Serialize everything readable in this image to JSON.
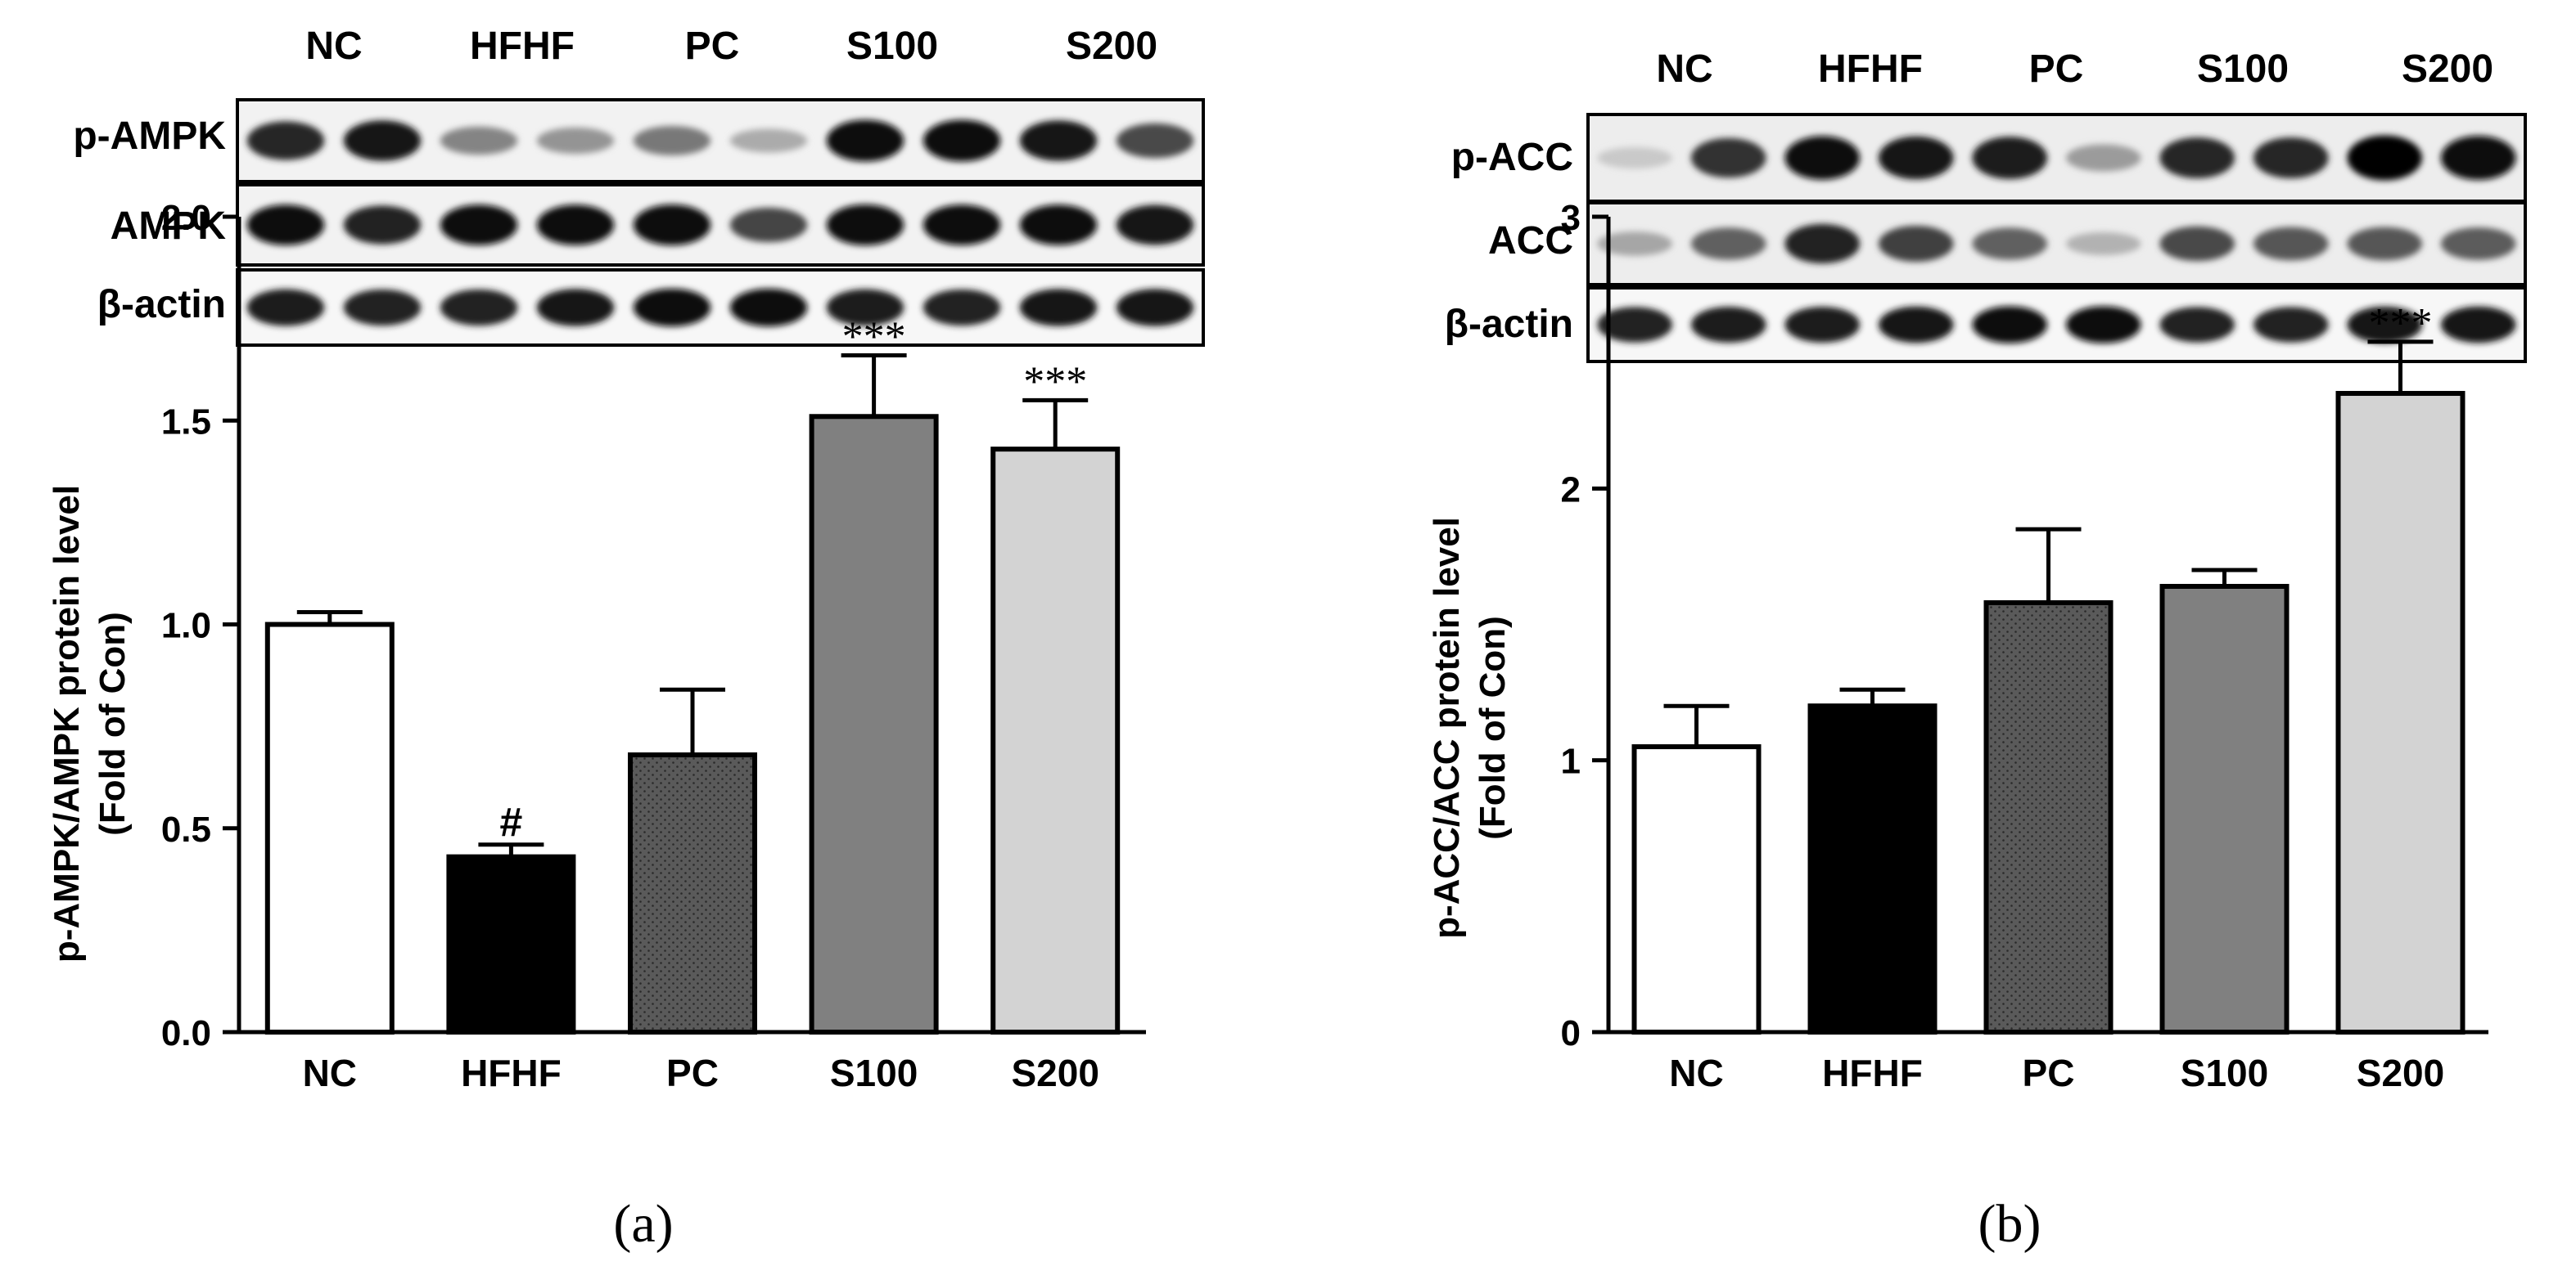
{
  "panels": [
    {
      "id": "a",
      "panel_label": "(a)",
      "blot": {
        "lanes": [
          "NC",
          "HFHF",
          "PC",
          "S100",
          "S200"
        ],
        "rows": [
          {
            "label": "p-AMPK",
            "intensity": [
              0.85,
              0.92,
              0.45,
              0.38,
              0.5,
              0.28,
              0.97,
              0.97,
              0.92,
              0.7
            ]
          },
          {
            "label": "AMPK",
            "intensity": [
              0.95,
              0.88,
              0.95,
              0.95,
              0.97,
              0.72,
              0.97,
              0.95,
              0.95,
              0.93
            ]
          },
          {
            "label": "β-actin",
            "intensity": [
              0.9,
              0.88,
              0.88,
              0.92,
              0.95,
              0.95,
              0.9,
              0.88,
              0.92,
              0.92
            ]
          }
        ]
      },
      "chart_data": {
        "type": "bar",
        "categories": [
          "NC",
          "HFHF",
          "PC",
          "S100",
          "S200"
        ],
        "values": [
          1.0,
          0.43,
          0.68,
          1.51,
          1.43
        ],
        "errors": [
          0.03,
          0.03,
          0.16,
          0.15,
          0.12
        ],
        "annotations": [
          "",
          "#",
          "",
          "***",
          "***"
        ],
        "ylabel": "p-AMPK/AMPK protein level",
        "ylabel2": "(Fold of Con)",
        "ylim": [
          0,
          2.0
        ],
        "yticks": [
          "0.0",
          "0.5",
          "1.0",
          "1.5",
          "2.0"
        ],
        "fills": [
          "white",
          "black",
          "dotted-gray",
          "#808080",
          "#d3d3d3"
        ]
      }
    },
    {
      "id": "b",
      "panel_label": "(b)",
      "blot": {
        "lanes": [
          "NC",
          "HFHF",
          "PC",
          "S100",
          "S200"
        ],
        "rows": [
          {
            "label": "p-ACC",
            "intensity": [
              0.15,
              0.8,
              0.95,
              0.92,
              0.9,
              0.35,
              0.85,
              0.85,
              1.0,
              0.97
            ]
          },
          {
            "label": "ACC",
            "intensity": [
              0.3,
              0.6,
              0.88,
              0.75,
              0.6,
              0.25,
              0.7,
              0.65,
              0.65,
              0.62
            ]
          },
          {
            "label": "β-actin",
            "intensity": [
              0.88,
              0.9,
              0.9,
              0.92,
              0.95,
              0.95,
              0.88,
              0.88,
              0.92,
              0.92
            ]
          }
        ]
      },
      "chart_data": {
        "type": "bar",
        "categories": [
          "NC",
          "HFHF",
          "PC",
          "S100",
          "S200"
        ],
        "values": [
          1.05,
          1.2,
          1.58,
          1.64,
          2.35
        ],
        "errors": [
          0.15,
          0.06,
          0.27,
          0.06,
          0.19
        ],
        "annotations": [
          "",
          "",
          "",
          "",
          "***"
        ],
        "ylabel": "p-ACC/ACC protein level",
        "ylabel2": "(Fold of Con)",
        "ylim": [
          0,
          3
        ],
        "yticks": [
          "0",
          "1",
          "2",
          "3"
        ],
        "fills": [
          "white",
          "black",
          "dotted-gray",
          "#808080",
          "#d3d3d3"
        ]
      }
    }
  ]
}
